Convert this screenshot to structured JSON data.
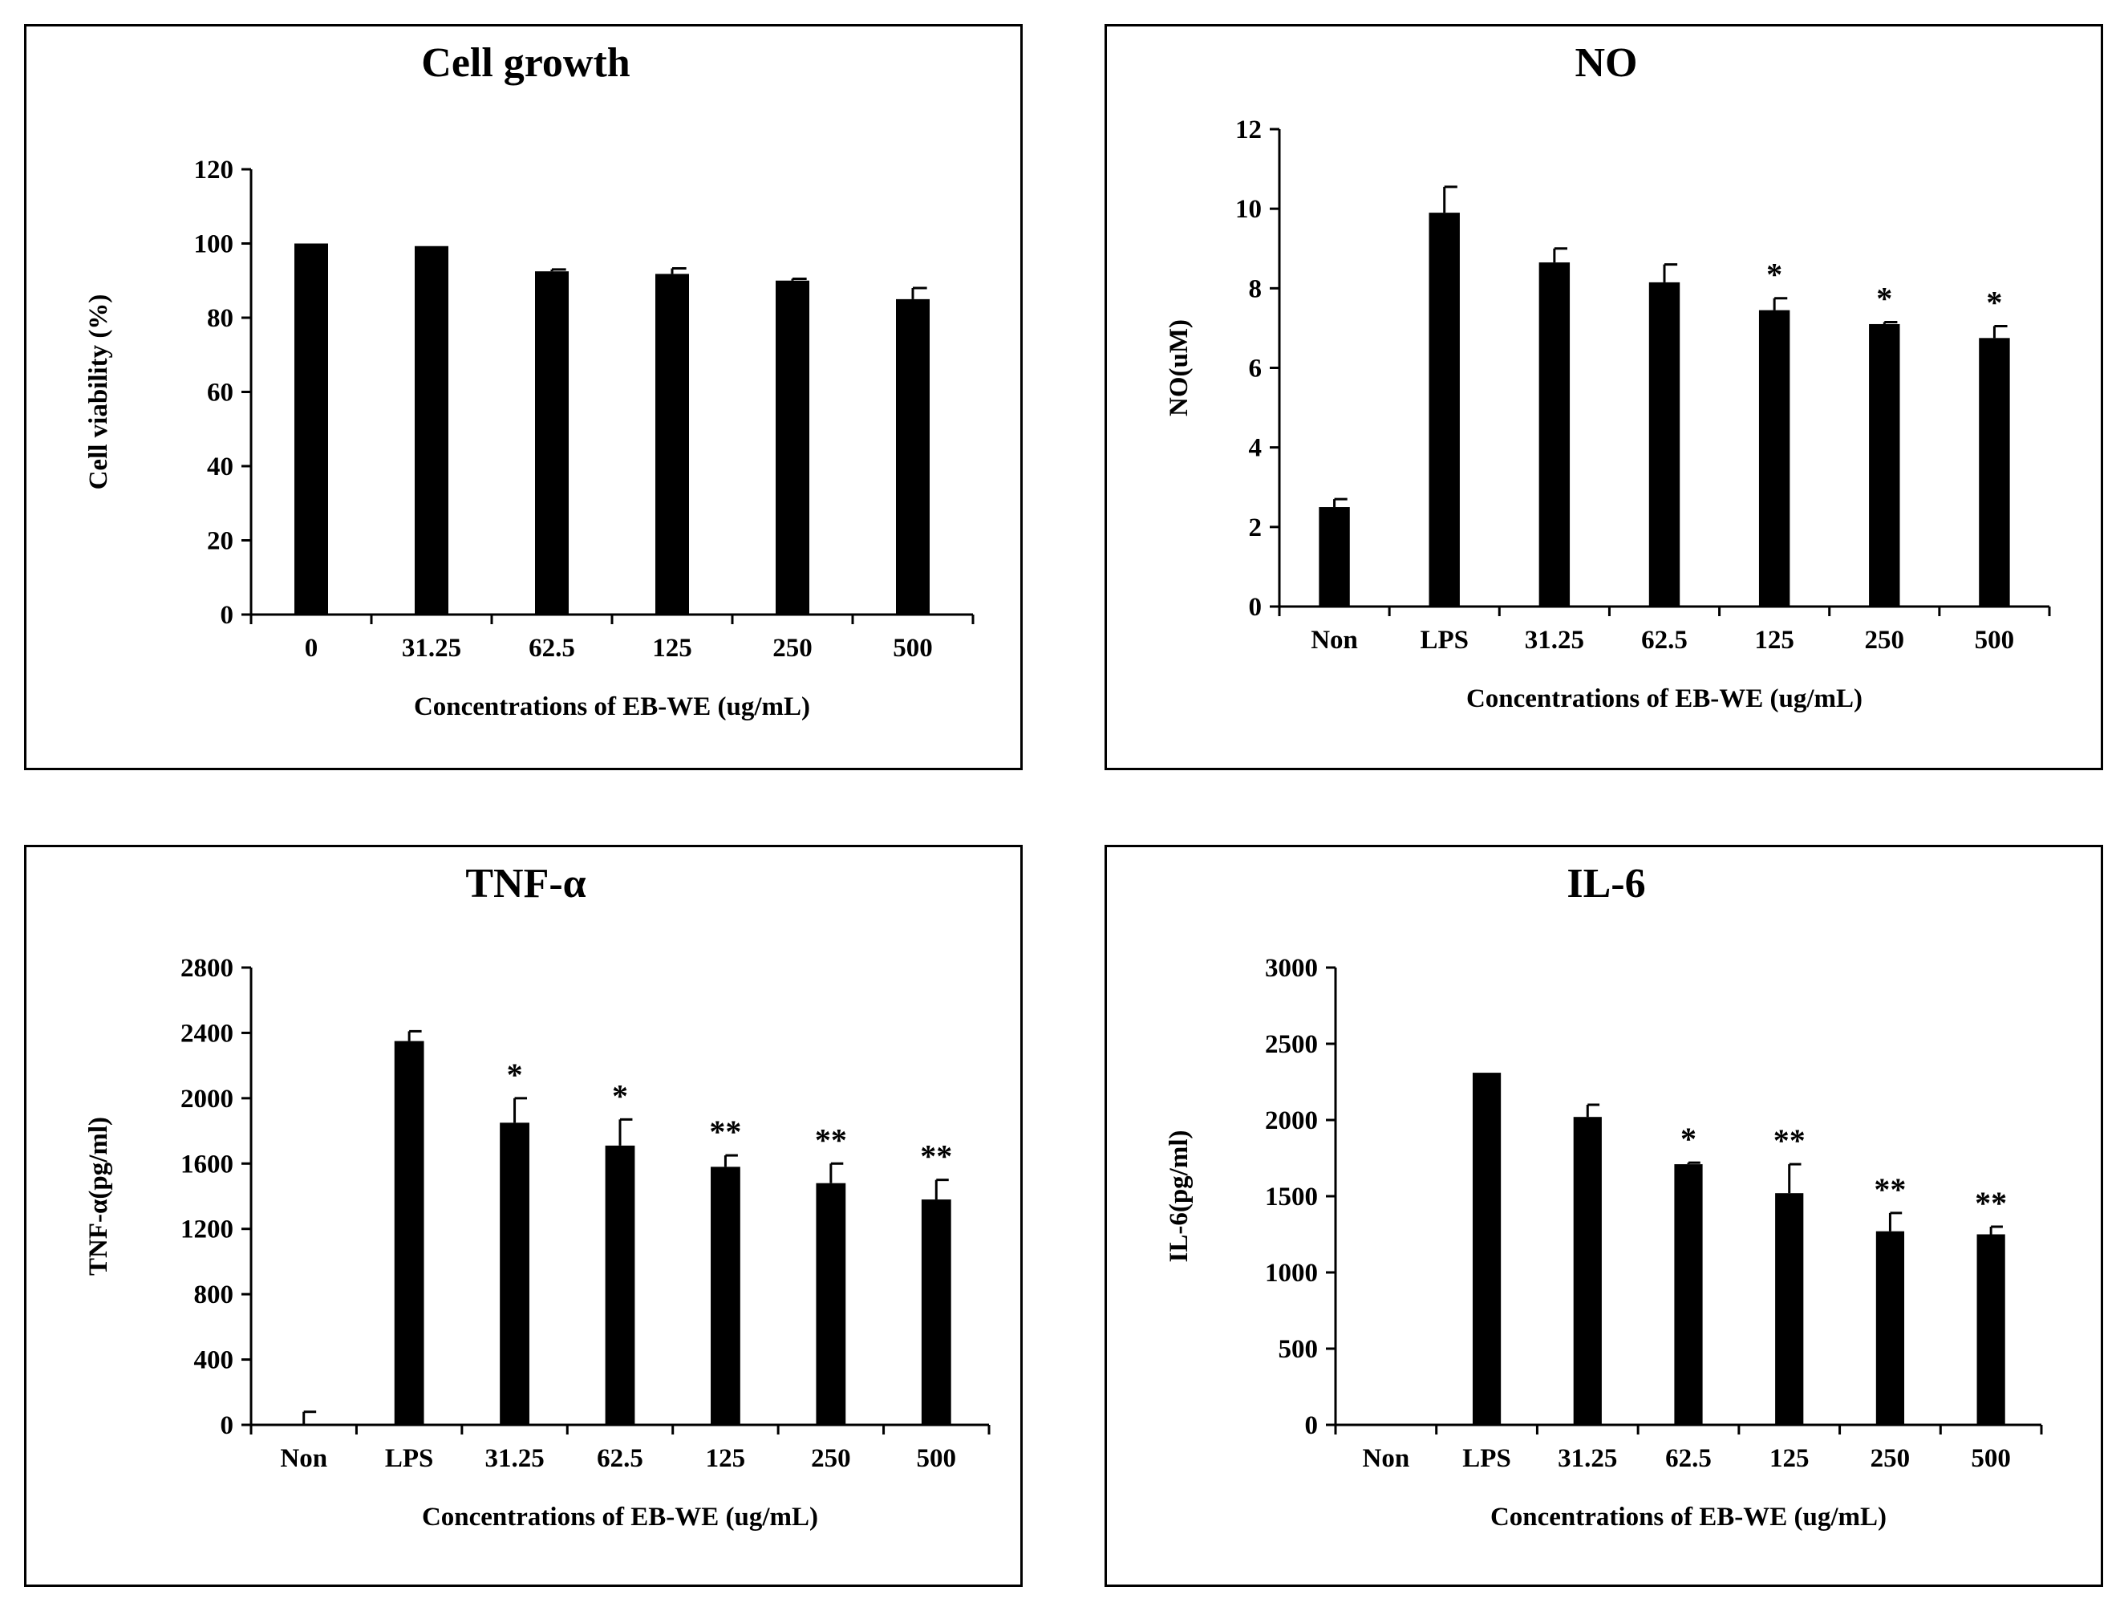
{
  "chart_data": [
    {
      "type": "bar",
      "title": "Cell growth",
      "xlabel": "Concentrations of EB-WE (ug/mL)",
      "ylabel": "Cell viability (%)",
      "ylim": [
        0,
        120
      ],
      "yticks": [
        0,
        20,
        40,
        60,
        80,
        100,
        120
      ],
      "categories": [
        "0",
        "31.25",
        "62.5",
        "125",
        "250",
        "500"
      ],
      "values": [
        100,
        99.3,
        92.5,
        91.8,
        90,
        85
      ],
      "errors": [
        0,
        0,
        0.5,
        1.5,
        0.5,
        3
      ],
      "significance": [
        "",
        "",
        "",
        "",
        "",
        ""
      ],
      "color": "#000000"
    },
    {
      "type": "bar",
      "title": "NO",
      "xlabel": "Concentrations of EB-WE (ug/mL)",
      "ylabel": "NO(uM)",
      "ylim": [
        0,
        12
      ],
      "yticks": [
        0,
        2,
        4,
        6,
        8,
        10,
        12
      ],
      "categories": [
        "Non",
        "LPS",
        "31.25",
        "62.5",
        "125",
        "250",
        "500"
      ],
      "values": [
        2.5,
        9.9,
        8.65,
        8.15,
        7.45,
        7.1,
        6.75
      ],
      "errors": [
        0.2,
        0.65,
        0.35,
        0.45,
        0.3,
        0.05,
        0.3
      ],
      "significance": [
        "",
        "",
        "",
        "",
        "*",
        "*",
        "*"
      ],
      "color": "#000000"
    },
    {
      "type": "bar",
      "title": "TNF-α",
      "xlabel": "Concentrations of EB-WE (ug/mL)",
      "ylabel": "TNF-α(pg/ml)",
      "ylim": [
        0,
        2800
      ],
      "yticks": [
        0,
        400,
        800,
        1200,
        1600,
        2000,
        2400,
        2800
      ],
      "categories": [
        "Non",
        "LPS",
        "31.25",
        "62.5",
        "125",
        "250",
        "500"
      ],
      "values": [
        0,
        2350,
        1850,
        1710,
        1580,
        1480,
        1380
      ],
      "errors": [
        80,
        60,
        150,
        160,
        70,
        120,
        120
      ],
      "significance": [
        "",
        "",
        "*",
        "*",
        "**",
        "**",
        "**"
      ],
      "color": "#000000"
    },
    {
      "type": "bar",
      "title": "IL-6",
      "xlabel": "Concentrations of EB-WE (ug/mL)",
      "ylabel": "IL-6(pg/ml)",
      "ylim": [
        0,
        3000
      ],
      "yticks": [
        0,
        500,
        1000,
        1500,
        2000,
        2500,
        3000
      ],
      "categories": [
        "Non",
        "LPS",
        "31.25",
        "62.5",
        "125",
        "250",
        "500"
      ],
      "values": [
        0,
        2310,
        2020,
        1710,
        1520,
        1270,
        1250
      ],
      "errors": [
        0,
        0,
        80,
        10,
        190,
        120,
        50
      ],
      "significance": [
        "",
        "",
        "",
        "*",
        "**",
        "**",
        "**"
      ],
      "color": "#000000"
    }
  ]
}
